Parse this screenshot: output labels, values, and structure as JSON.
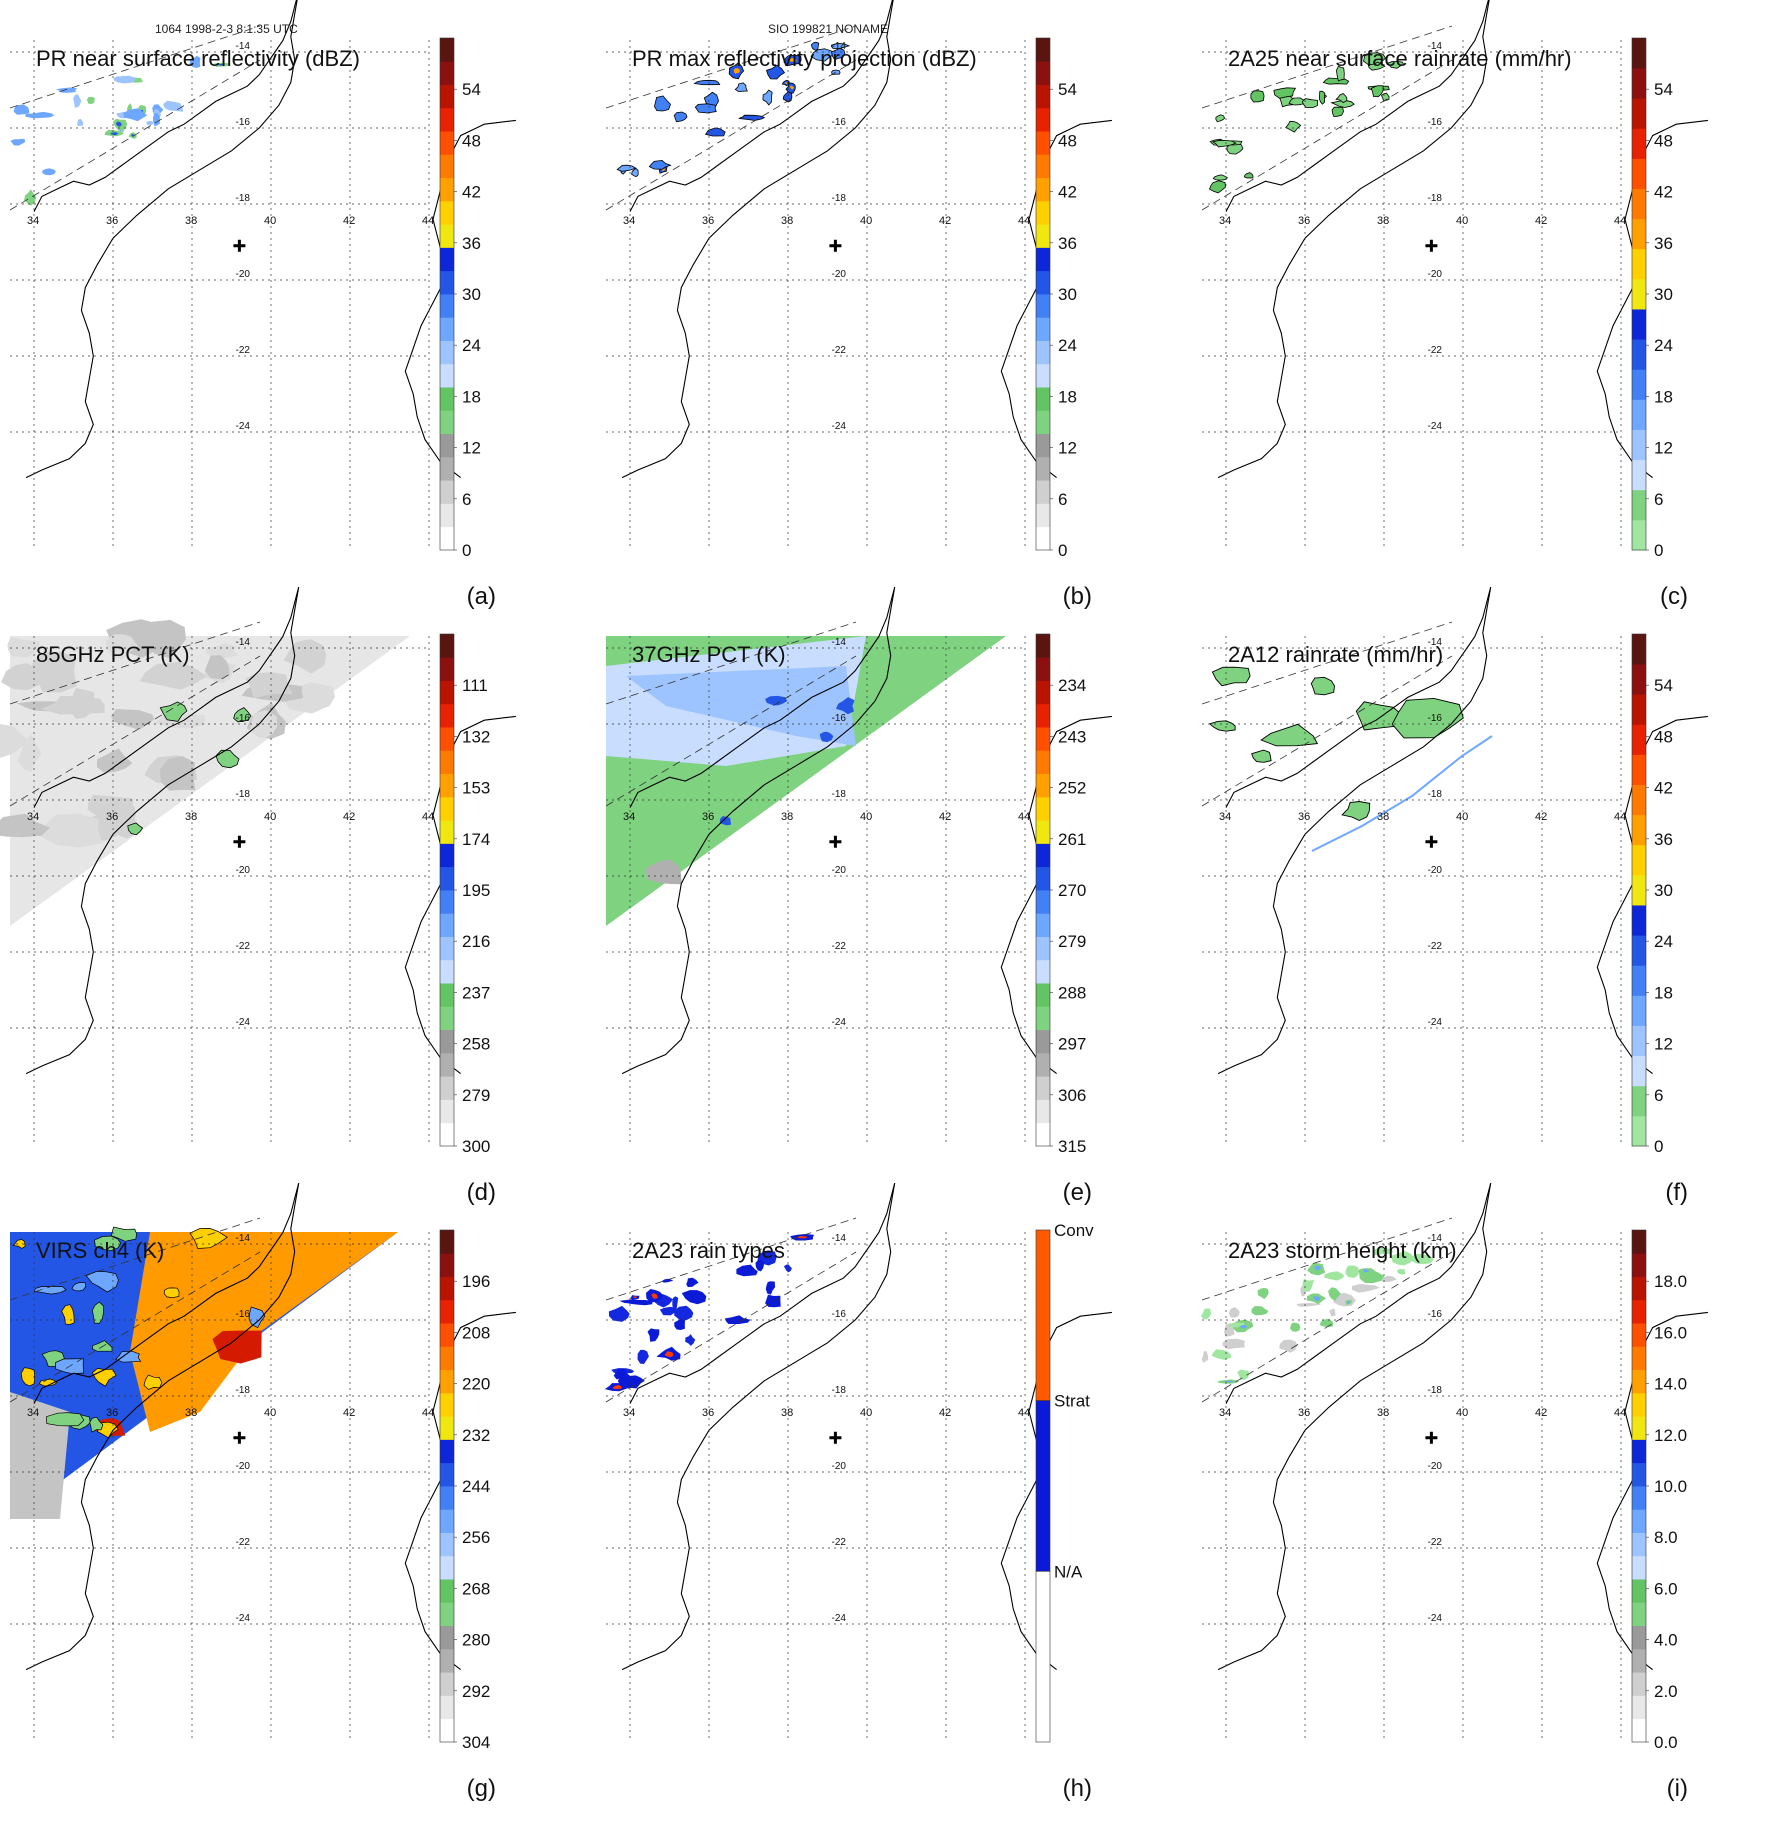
{
  "header": {
    "left": "1064 1998-2-3 8:1:35 UTC",
    "center": "SIO 199821 NONAME"
  },
  "axes": {
    "lon_labels": [
      "34",
      "36",
      "38",
      "40",
      "42",
      "44"
    ],
    "lat_labels": [
      "-14",
      "-16",
      "-18",
      "-20",
      "-22",
      "-24"
    ]
  },
  "colors": {
    "coast": "#000000",
    "grid": "#333333",
    "swath": "#333333"
  },
  "panels": [
    {
      "id": "a",
      "title": "PR near surface reflectivity (dBZ)",
      "label": "(a)",
      "type": "pr",
      "field": "reflectivity",
      "colorbar_ticks": [
        "0",
        "6",
        "12",
        "18",
        "24",
        "30",
        "36",
        "42",
        "48",
        "54"
      ]
    },
    {
      "id": "b",
      "title": "PR max reflectivity projection (dBZ)",
      "label": "(b)",
      "type": "pr",
      "field": "max_reflectivity",
      "colorbar_ticks": [
        "0",
        "6",
        "12",
        "18",
        "24",
        "30",
        "36",
        "42",
        "48",
        "54"
      ]
    },
    {
      "id": "c",
      "title": "2A25 near surface rainrate (mm/hr)",
      "label": "(c)",
      "type": "pr",
      "field": "rainrate",
      "colorbar_ticks": [
        "0",
        "6",
        "12",
        "18",
        "24",
        "30",
        "36",
        "42",
        "48",
        "54"
      ]
    },
    {
      "id": "d",
      "title": "85GHz PCT (K)",
      "label": "(d)",
      "type": "tmi",
      "field": "pct85",
      "colorbar_ticks": [
        "300",
        "279",
        "258",
        "237",
        "216",
        "195",
        "174",
        "153",
        "132",
        "111"
      ]
    },
    {
      "id": "e",
      "title": "37GHz PCT (K)",
      "label": "(e)",
      "type": "tmi",
      "field": "pct37",
      "colorbar_ticks": [
        "315",
        "306",
        "297",
        "288",
        "279",
        "270",
        "261",
        "252",
        "243",
        "234"
      ]
    },
    {
      "id": "f",
      "title": "2A12 rainrate (mm/hr)",
      "label": "(f)",
      "type": "tmi",
      "field": "tmi_rain",
      "colorbar_ticks": [
        "0",
        "6",
        "12",
        "18",
        "24",
        "30",
        "36",
        "42",
        "48",
        "54"
      ]
    },
    {
      "id": "g",
      "title": "VIRS ch4 (K)",
      "label": "(g)",
      "type": "virs",
      "field": "virs",
      "colorbar_ticks": [
        "304",
        "292",
        "280",
        "268",
        "256",
        "244",
        "232",
        "220",
        "208",
        "196"
      ]
    },
    {
      "id": "h",
      "title": "2A23 rain types",
      "label": "(h)",
      "type": "pr",
      "field": "raintype",
      "colorbar_ticks": [
        "N/A",
        "Strat",
        "Conv"
      ]
    },
    {
      "id": "i",
      "title": "2A23 storm height (km)",
      "label": "(i)",
      "type": "pr",
      "field": "stormheight",
      "colorbar_ticks": [
        "0.0",
        "2.0",
        "4.0",
        "6.0",
        "8.0",
        "10.0",
        "12.0",
        "14.0",
        "16.0",
        "18.0"
      ]
    }
  ]
}
